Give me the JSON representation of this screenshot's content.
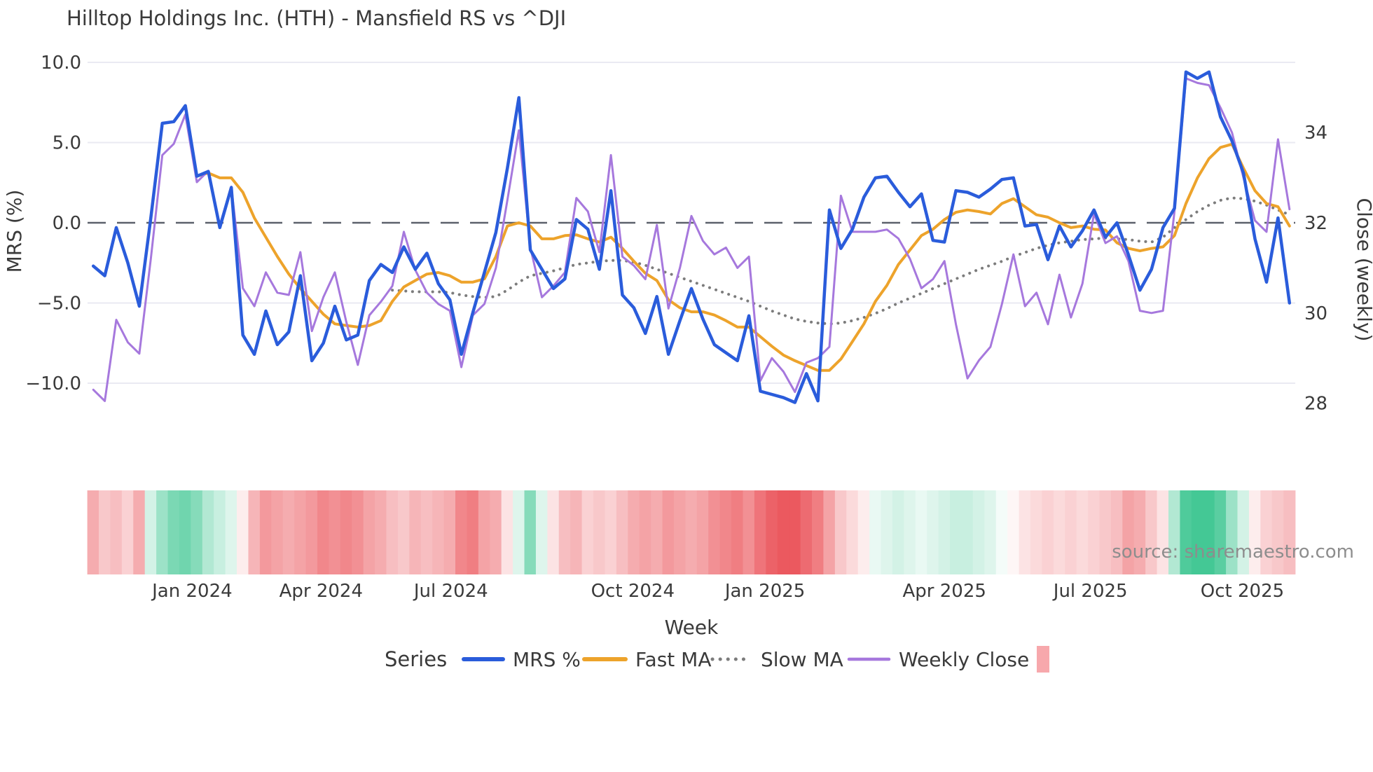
{
  "header": {
    "title": "Hilltop Holdings Inc. (HTH) - Mansfield RS vs ^DJI"
  },
  "source_note": "source: sharemaestro.com",
  "legend": {
    "title": "Series",
    "items": [
      {
        "label": "MRS %",
        "swatch": "line-solid",
        "color": "#2a5cdb"
      },
      {
        "label": "Fast MA",
        "swatch": "line-solid",
        "color": "#eda32b"
      },
      {
        "label": "Slow MA",
        "swatch": "line-dotted",
        "color": "#7c7c7c"
      },
      {
        "label": "Weekly Close",
        "swatch": "line-solid",
        "color": "#a678dd"
      },
      {
        "label": "",
        "swatch": "square",
        "color": "#f7a8ac"
      }
    ]
  },
  "chart_data": {
    "type": "line",
    "title": "Hilltop Holdings Inc. (HTH) - Mansfield RS vs ^DJI",
    "xlabel": "Week",
    "n_weeks": 105,
    "left_axis": {
      "label": "MRS (%)",
      "ticks": [
        10.0,
        5.0,
        0.0,
        -5.0,
        -10.0
      ],
      "tick_labels": [
        "10.0",
        "5.0",
        "0.0",
        "−5.0",
        "−10.0"
      ],
      "range_note": "zero line drawn as dark dashed line",
      "grid": true
    },
    "right_axis": {
      "label": "Close (weekly)",
      "ticks": [
        34,
        32,
        30,
        28
      ],
      "tick_labels": [
        "34",
        "32",
        "30",
        "28"
      ]
    },
    "x_axis": {
      "label": "Week",
      "tick_labels": [
        "Jan 2024",
        "Apr 2024",
        "Jul 2024",
        "Oct 2024",
        "Jan 2025",
        "Apr 2025",
        "Jul 2025",
        "Oct 2025"
      ],
      "tick_week_positions": [
        8.6,
        19.8,
        31.1,
        46.9,
        58.4,
        74.0,
        86.7,
        99.9
      ]
    },
    "series": [
      {
        "name": "MRS %",
        "axis": "left",
        "color": "#2a5cdb",
        "width": 4.5,
        "style": "solid",
        "values": [
          -2.7,
          -3.3,
          -0.3,
          -2.5,
          -5.2,
          0.3,
          6.2,
          6.3,
          7.3,
          2.9,
          3.2,
          -0.3,
          2.2,
          -7.0,
          -8.2,
          -5.5,
          -7.6,
          -6.8,
          -3.3,
          -8.6,
          -7.5,
          -5.2,
          -7.3,
          -7.0,
          -3.6,
          -2.6,
          -3.1,
          -1.5,
          -2.9,
          -1.9,
          -3.8,
          -4.8,
          -8.2,
          -5.6,
          -3.1,
          -0.6,
          3.4,
          7.8,
          -1.7,
          -2.9,
          -4.1,
          -3.5,
          0.2,
          -0.4,
          -2.9,
          2.0,
          -4.5,
          -5.3,
          -6.9,
          -4.6,
          -8.2,
          -6.1,
          -4.1,
          -6.0,
          -7.6,
          -8.1,
          -8.6,
          -5.8,
          -10.5,
          -10.7,
          -10.9,
          -11.2,
          -9.4,
          -11.1,
          0.8,
          -1.6,
          -0.4,
          1.6,
          2.8,
          2.9,
          1.9,
          1.0,
          1.8,
          -1.1,
          -1.2,
          2.0,
          1.9,
          1.6,
          2.1,
          2.7,
          2.8,
          -0.2,
          -0.1,
          -2.3,
          -0.2,
          -1.5,
          -0.5,
          0.8,
          -0.9,
          0.0,
          -2.0,
          -4.2,
          -2.9,
          -0.3,
          0.9,
          9.4,
          9.0,
          9.4,
          6.6,
          5.1,
          3.1,
          -1.0,
          -3.7,
          0.3,
          -5.0
        ]
      },
      {
        "name": "Fast MA",
        "axis": "left",
        "color": "#eda32b",
        "width": 4,
        "style": "solid",
        "values": [
          null,
          null,
          null,
          null,
          null,
          null,
          null,
          null,
          null,
          2.9,
          3.1,
          2.8,
          2.8,
          1.9,
          0.3,
          -0.9,
          -2.1,
          -3.2,
          -4.1,
          -4.9,
          -5.7,
          -6.3,
          -6.4,
          -6.5,
          -6.4,
          -6.1,
          -4.9,
          -4.0,
          -3.6,
          -3.2,
          -3.1,
          -3.3,
          -3.7,
          -3.7,
          -3.5,
          -2.1,
          -0.2,
          0.0,
          -0.2,
          -1.0,
          -1.0,
          -0.8,
          -0.75,
          -1.0,
          -1.2,
          -0.9,
          -1.6,
          -2.4,
          -3.15,
          -3.6,
          -4.8,
          -5.3,
          -5.55,
          -5.55,
          -5.75,
          -6.1,
          -6.5,
          -6.5,
          -7.1,
          -7.7,
          -8.25,
          -8.6,
          -8.9,
          -9.2,
          -9.2,
          -8.5,
          -7.4,
          -6.3,
          -4.9,
          -3.9,
          -2.6,
          -1.7,
          -0.8,
          -0.4,
          0.2,
          0.65,
          0.8,
          0.7,
          0.55,
          1.2,
          1.5,
          1.0,
          0.5,
          0.35,
          0.0,
          -0.3,
          -0.2,
          -0.4,
          -0.45,
          -1.25,
          -1.6,
          -1.75,
          -1.6,
          -1.5,
          -0.8,
          1.2,
          2.8,
          4.0,
          4.7,
          4.9,
          3.4,
          2.0,
          1.2,
          1.0,
          -0.2
        ]
      },
      {
        "name": "Slow MA",
        "axis": "left",
        "color": "#7c7c7c",
        "width": 4,
        "style": "dotted",
        "values": [
          null,
          null,
          null,
          null,
          null,
          null,
          null,
          null,
          null,
          null,
          null,
          null,
          null,
          null,
          null,
          null,
          null,
          null,
          null,
          null,
          null,
          null,
          null,
          null,
          null,
          null,
          -4.2,
          -4.25,
          -4.3,
          -4.3,
          -4.3,
          -4.35,
          -4.5,
          -4.6,
          -4.65,
          -4.6,
          -4.2,
          -3.7,
          -3.3,
          -3.15,
          -3.0,
          -2.8,
          -2.6,
          -2.5,
          -2.4,
          -2.35,
          -2.35,
          -2.45,
          -2.65,
          -2.9,
          -3.15,
          -3.4,
          -3.65,
          -3.9,
          -4.15,
          -4.4,
          -4.65,
          -4.9,
          -5.2,
          -5.5,
          -5.75,
          -6.0,
          -6.15,
          -6.25,
          -6.3,
          -6.25,
          -6.1,
          -5.9,
          -5.65,
          -5.35,
          -5.0,
          -4.7,
          -4.4,
          -4.1,
          -3.8,
          -3.5,
          -3.2,
          -2.9,
          -2.65,
          -2.4,
          -2.1,
          -1.85,
          -1.6,
          -1.4,
          -1.25,
          -1.15,
          -1.05,
          -1.0,
          -0.95,
          -1.0,
          -1.05,
          -1.15,
          -1.2,
          -0.9,
          -0.3,
          0.2,
          0.7,
          1.1,
          1.4,
          1.55,
          1.5,
          1.35,
          1.1,
          0.8,
          0.5
        ]
      },
      {
        "name": "Weekly Close",
        "axis": "right",
        "color": "#a678dd",
        "width": 3,
        "style": "solid",
        "values": [
          28.3,
          28.05,
          29.85,
          29.35,
          29.1,
          31.2,
          33.5,
          33.75,
          34.4,
          32.9,
          33.15,
          31.95,
          32.8,
          30.55,
          30.15,
          30.9,
          30.45,
          30.4,
          31.35,
          29.6,
          30.35,
          30.9,
          29.8,
          28.85,
          29.95,
          30.25,
          30.6,
          31.8,
          30.95,
          30.45,
          30.2,
          30.05,
          28.8,
          29.95,
          30.2,
          31.0,
          32.5,
          34.05,
          31.45,
          30.35,
          30.6,
          30.9,
          32.55,
          32.25,
          31.35,
          33.5,
          31.25,
          31.05,
          30.75,
          31.95,
          30.1,
          31.0,
          32.15,
          31.6,
          31.3,
          31.45,
          31.0,
          31.25,
          28.5,
          29.0,
          28.7,
          28.25,
          28.9,
          29.0,
          29.25,
          32.6,
          31.8,
          31.8,
          31.8,
          31.85,
          31.65,
          31.2,
          30.55,
          30.75,
          31.15,
          29.75,
          28.55,
          28.95,
          29.25,
          30.2,
          31.3,
          30.15,
          30.45,
          29.75,
          30.85,
          29.9,
          30.65,
          32.2,
          31.55,
          31.7,
          31.15,
          30.05,
          30.0,
          30.05,
          32.25,
          35.2,
          35.1,
          35.05,
          34.55,
          34.0,
          33.0,
          32.05,
          31.8,
          33.85,
          32.3
        ]
      }
    ],
    "heat_strip": {
      "description": "weekly red/green signal band under chart, -1 = strong red, +1 = strong green",
      "neg_color": "#e9464d",
      "pos_color": "#23be82",
      "values": [
        -0.45,
        -0.3,
        -0.35,
        -0.25,
        -0.45,
        0.2,
        0.45,
        0.6,
        0.65,
        0.55,
        0.35,
        0.25,
        0.15,
        -0.1,
        -0.4,
        -0.55,
        -0.5,
        -0.45,
        -0.5,
        -0.55,
        -0.65,
        -0.6,
        -0.65,
        -0.6,
        -0.5,
        -0.45,
        -0.35,
        -0.3,
        -0.4,
        -0.35,
        -0.4,
        -0.45,
        -0.65,
        -0.7,
        -0.5,
        -0.45,
        -0.15,
        0.15,
        0.55,
        0.15,
        -0.15,
        -0.35,
        -0.4,
        -0.25,
        -0.3,
        -0.25,
        -0.35,
        -0.45,
        -0.5,
        -0.45,
        -0.55,
        -0.5,
        -0.45,
        -0.5,
        -0.6,
        -0.65,
        -0.7,
        -0.6,
        -0.75,
        -0.85,
        -0.9,
        -0.9,
        -0.8,
        -0.7,
        -0.5,
        -0.3,
        -0.2,
        -0.1,
        0.1,
        0.15,
        0.2,
        0.15,
        0.1,
        0.15,
        0.2,
        0.25,
        0.25,
        0.2,
        0.15,
        0.05,
        -0.05,
        -0.15,
        -0.2,
        -0.25,
        -0.2,
        -0.25,
        -0.2,
        -0.25,
        -0.3,
        -0.35,
        -0.5,
        -0.45,
        -0.3,
        -0.15,
        0.35,
        0.8,
        0.85,
        0.85,
        0.75,
        0.45,
        0.2,
        -0.1,
        -0.25,
        -0.3,
        -0.35
      ]
    },
    "zero_line": {
      "value": 0.0,
      "color": "#5c616b",
      "style": "dashed"
    }
  }
}
